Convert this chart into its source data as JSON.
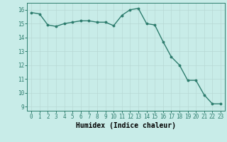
{
  "x": [
    0,
    1,
    2,
    3,
    4,
    5,
    6,
    7,
    8,
    9,
    10,
    11,
    12,
    13,
    14,
    15,
    16,
    17,
    18,
    19,
    20,
    21,
    22,
    23
  ],
  "y": [
    15.8,
    15.7,
    14.9,
    14.8,
    15.0,
    15.1,
    15.2,
    15.2,
    15.1,
    15.1,
    14.85,
    15.6,
    16.0,
    16.1,
    15.0,
    14.9,
    13.7,
    12.6,
    12.0,
    10.9,
    10.9,
    9.85,
    9.2,
    9.2
  ],
  "line_color": "#2e7d6e",
  "marker": "o",
  "markersize": 1.8,
  "linewidth": 1.0,
  "bg_color": "#c8ece8",
  "grid_color": "#b8d8d4",
  "xlabel": "Humidex (Indice chaleur)",
  "ylim": [
    8.7,
    16.5
  ],
  "xlim": [
    -0.5,
    23.5
  ],
  "yticks": [
    9,
    10,
    11,
    12,
    13,
    14,
    15,
    16
  ],
  "xticks": [
    0,
    1,
    2,
    3,
    4,
    5,
    6,
    7,
    8,
    9,
    10,
    11,
    12,
    13,
    14,
    15,
    16,
    17,
    18,
    19,
    20,
    21,
    22,
    23
  ],
  "tick_label_fontsize": 5.5,
  "xlabel_fontsize": 7.0
}
